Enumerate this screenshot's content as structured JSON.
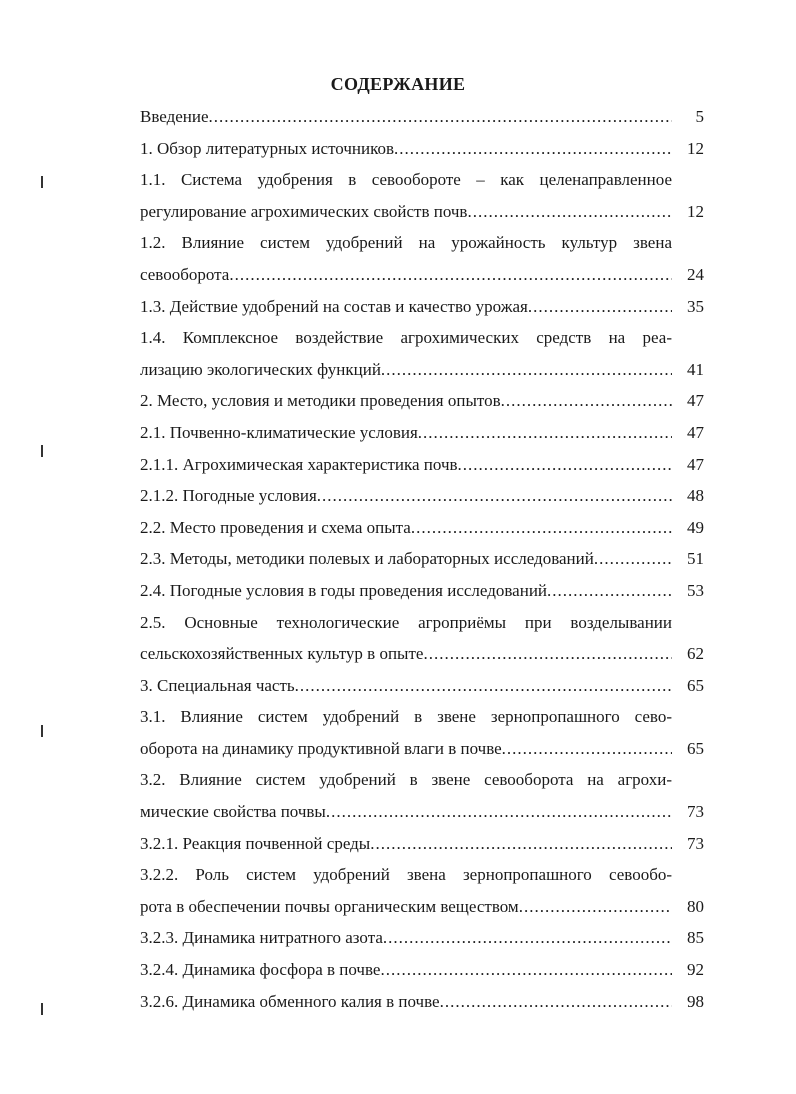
{
  "title": "СОДЕРЖАНИЕ",
  "entries": [
    {
      "lines": [
        "Введение"
      ],
      "page": "5"
    },
    {
      "lines": [
        "1. Обзор литературных источников"
      ],
      "page": "12"
    },
    {
      "lines": [
        "1.1. Система удобрения в севообороте – как целенаправленное",
        "регулирование агрохимических свойств почв "
      ],
      "page": "12"
    },
    {
      "lines": [
        "1.2. Влияние систем удобрений на урожайность культур звена",
        "севооборота"
      ],
      "page": "24"
    },
    {
      "lines": [
        "1.3. Действие удобрений на состав и качество урожая"
      ],
      "page": "35"
    },
    {
      "lines": [
        "1.4. Комплексное воздействие агрохимических средств на реа-",
        "лизацию экологических функций"
      ],
      "page": "41"
    },
    {
      "lines": [
        "2. Место, условия и методики проведения опытов"
      ],
      "page": "47"
    },
    {
      "lines": [
        "2.1. Почвенно-климатические условия "
      ],
      "page": "47"
    },
    {
      "lines": [
        "2.1.1. Агрохимическая характеристика почв"
      ],
      "page": "47"
    },
    {
      "lines": [
        "2.1.2. Погодные условия"
      ],
      "page": "48"
    },
    {
      "lines": [
        "2.2. Место проведения и схема опыта"
      ],
      "page": "49"
    },
    {
      "lines": [
        "2.3. Методы, методики полевых и лабораторных исследований"
      ],
      "page": "51"
    },
    {
      "lines": [
        "2.4. Погодные условия в годы проведения исследований"
      ],
      "page": "53"
    },
    {
      "lines": [
        "2.5. Основные технологические агроприёмы при возделывании",
        "сельскохозяйственных культур в опыте"
      ],
      "page": "62"
    },
    {
      "lines": [
        "3. Специальная часть"
      ],
      "page": "65"
    },
    {
      "lines": [
        "3.1. Влияние систем удобрений в звене зернопропашного сево-",
        "оборота на динамику продуктивной влаги в почве"
      ],
      "page": "65"
    },
    {
      "lines": [
        "3.2. Влияние систем удобрений в звене севооборота на агрохи-",
        "мические свойства почвы"
      ],
      "page": "73"
    },
    {
      "lines": [
        "3.2.1. Реакция почвенной среды"
      ],
      "page": "73"
    },
    {
      "lines": [
        "3.2.2. Роль систем удобрений звена зернопропашного севообо-",
        "рота в обеспечении почвы органическим веществом "
      ],
      "page": "80"
    },
    {
      "lines": [
        "3.2.3. Динамика нитратного азота"
      ],
      "page": "85"
    },
    {
      "lines": [
        "3.2.4. Динамика фосфора в почве"
      ],
      "page": "92"
    },
    {
      "lines": [
        "3.2.6. Динамика обменного калия в почве"
      ],
      "page": "98"
    }
  ]
}
